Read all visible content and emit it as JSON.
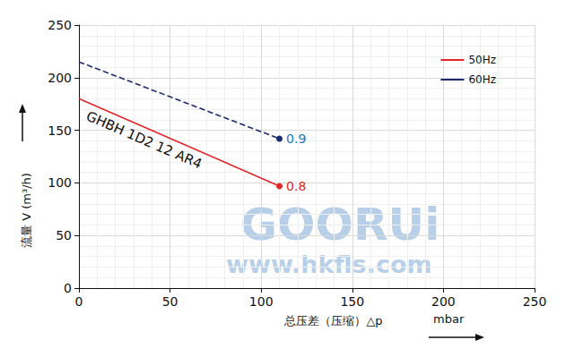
{
  "chart_data": {
    "type": "line",
    "y_label": "流量 V (m³/h)",
    "x_label": "总压差（压缩）△p",
    "x_unit": "mbar",
    "annotations": [
      "GHBH 1D2 12 AR4"
    ],
    "watermark": [
      "GOORUi",
      "www.hkfls.com"
    ],
    "series": [
      {
        "name": "50Hz",
        "color": "#e0262a",
        "line_style": "solid",
        "marker": "circle",
        "x": [
          0,
          110
        ],
        "values": [
          180,
          97
        ],
        "end_label": 0.8
      },
      {
        "name": "60Hz",
        "color": "#1e2a6e",
        "line_style": "dashed",
        "marker": "circle",
        "x": [
          0,
          110
        ],
        "values": [
          215,
          142
        ],
        "end_label": 0.9
      }
    ],
    "xlim": [
      0,
      250
    ],
    "xticks": [
      0,
      50,
      100,
      150,
      200,
      250
    ],
    "ylim": [
      0,
      250
    ],
    "yticks": [
      0,
      50,
      100,
      150,
      200,
      250
    ],
    "grid": true,
    "legend": "top-right"
  }
}
